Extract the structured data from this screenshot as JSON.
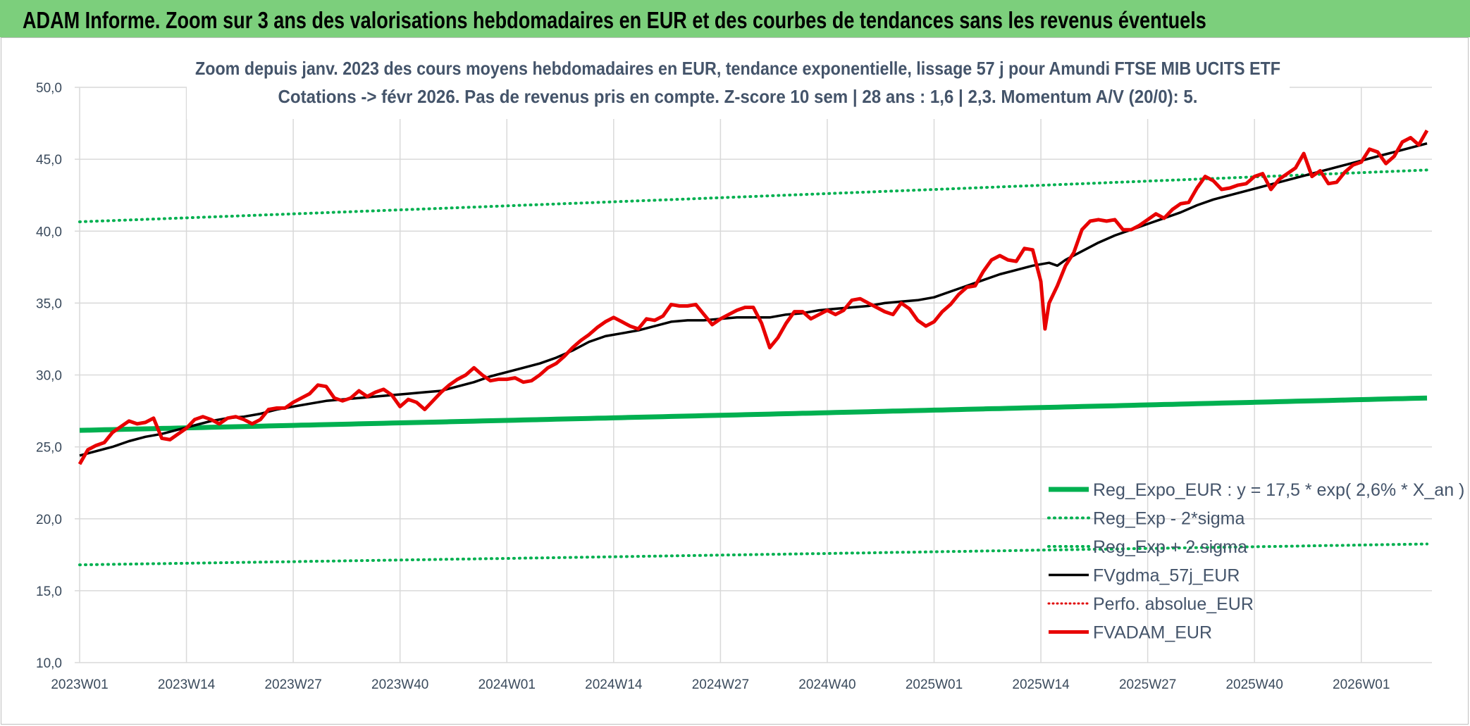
{
  "banner": {
    "title": "ADAM Informe. Zoom sur 3 ans des valorisations hebdomadaires en EUR et des courbes de tendances sans les revenus éventuels"
  },
  "colors": {
    "banner": "#7ccf7c",
    "trend": "#00b050",
    "band": "#00b050",
    "smooth": "#000000",
    "perf": "#e00000",
    "price": "#e80000",
    "grid": "#d9d9d9",
    "text": "#44546a"
  },
  "chart_data": {
    "type": "line",
    "title_line1": "Zoom depuis janv. 2023 des cours moyens hebdomadaires en EUR, tendance exponentielle, lissage 57 j pour Amundi FTSE MIB UCITS ETF",
    "title_line2": "Cotations -> févr 2026. Pas de revenus pris en compte. Z-score 10 sem | 28 ans : 1,6 | 2,3. Momentum A/V (20/0): 5.",
    "ylim": [
      10,
      50
    ],
    "yticks": [
      "50,0",
      "45,0",
      "40,0",
      "35,0",
      "30,0",
      "25,0",
      "20,0",
      "15,0",
      "10,0"
    ],
    "x_count": 165,
    "xticks": [
      {
        "i": 0,
        "label": "2023W01"
      },
      {
        "i": 13,
        "label": "2023W14"
      },
      {
        "i": 26,
        "label": "2023W27"
      },
      {
        "i": 39,
        "label": "2023W40"
      },
      {
        "i": 52,
        "label": "2024W01"
      },
      {
        "i": 65,
        "label": "2024W14"
      },
      {
        "i": 78,
        "label": "2024W27"
      },
      {
        "i": 91,
        "label": "2024W40"
      },
      {
        "i": 104,
        "label": "2025W01"
      },
      {
        "i": 117,
        "label": "2025W14"
      },
      {
        "i": 130,
        "label": "2025W27"
      },
      {
        "i": 143,
        "label": "2025W40"
      },
      {
        "i": 156,
        "label": "2026W01"
      }
    ],
    "legend": [
      "Reg_Expo_EUR : y = 17,5 * exp( 2,6% *  X_an )",
      "Reg_Exp - 2*sigma",
      "Reg_Exp + 2.sigma",
      "FVgdma_57j_EUR",
      "Perfo. absolue_EUR",
      "FVADAM_EUR"
    ],
    "series": [
      {
        "name": "Reg_Expo_EUR : y = 17,5 * exp( 2,6% *  X_an )",
        "style": "thick-solid",
        "start": 26.15,
        "end": 28.4
      },
      {
        "name": "Reg_Exp - 2*sigma",
        "style": "dotted",
        "start": 16.8,
        "end": 18.25
      },
      {
        "name": "Reg_Exp + 2.sigma",
        "style": "dotted",
        "start": 40.65,
        "end": 44.25
      },
      {
        "name": "FVgdma_57j_EUR",
        "style": "solid",
        "points": [
          [
            0,
            24.4
          ],
          [
            4,
            25.0
          ],
          [
            6,
            25.4
          ],
          [
            8,
            25.7
          ],
          [
            10,
            25.9
          ],
          [
            12,
            26.2
          ],
          [
            14,
            26.5
          ],
          [
            16,
            26.8
          ],
          [
            18,
            27.0
          ],
          [
            20,
            27.1
          ],
          [
            22,
            27.3
          ],
          [
            24,
            27.6
          ],
          [
            26,
            27.8
          ],
          [
            28,
            28.0
          ],
          [
            30,
            28.2
          ],
          [
            32,
            28.3
          ],
          [
            34,
            28.4
          ],
          [
            36,
            28.5
          ],
          [
            38,
            28.6
          ],
          [
            40,
            28.7
          ],
          [
            42,
            28.8
          ],
          [
            44,
            28.9
          ],
          [
            46,
            29.2
          ],
          [
            48,
            29.5
          ],
          [
            50,
            29.9
          ],
          [
            52,
            30.2
          ],
          [
            54,
            30.5
          ],
          [
            56,
            30.8
          ],
          [
            58,
            31.2
          ],
          [
            60,
            31.7
          ],
          [
            62,
            32.3
          ],
          [
            64,
            32.7
          ],
          [
            66,
            32.9
          ],
          [
            68,
            33.1
          ],
          [
            70,
            33.4
          ],
          [
            72,
            33.7
          ],
          [
            74,
            33.8
          ],
          [
            76,
            33.8
          ],
          [
            78,
            33.9
          ],
          [
            80,
            34.0
          ],
          [
            82,
            34.0
          ],
          [
            84,
            34.0
          ],
          [
            86,
            34.2
          ],
          [
            88,
            34.3
          ],
          [
            90,
            34.5
          ],
          [
            92,
            34.6
          ],
          [
            94,
            34.7
          ],
          [
            96,
            34.8
          ],
          [
            98,
            35.0
          ],
          [
            100,
            35.1
          ],
          [
            102,
            35.2
          ],
          [
            104,
            35.4
          ],
          [
            106,
            35.8
          ],
          [
            108,
            36.2
          ],
          [
            110,
            36.6
          ],
          [
            112,
            37.0
          ],
          [
            114,
            37.3
          ],
          [
            116,
            37.6
          ],
          [
            118,
            37.8
          ],
          [
            119,
            37.6
          ],
          [
            120,
            38.0
          ],
          [
            122,
            38.6
          ],
          [
            124,
            39.2
          ],
          [
            126,
            39.7
          ],
          [
            128,
            40.1
          ],
          [
            130,
            40.5
          ],
          [
            132,
            40.9
          ],
          [
            134,
            41.3
          ],
          [
            136,
            41.8
          ],
          [
            138,
            42.2
          ],
          [
            140,
            42.5
          ],
          [
            142,
            42.8
          ],
          [
            144,
            43.1
          ],
          [
            146,
            43.4
          ],
          [
            148,
            43.7
          ],
          [
            150,
            44.0
          ],
          [
            152,
            44.3
          ],
          [
            154,
            44.6
          ],
          [
            156,
            44.9
          ],
          [
            158,
            45.2
          ],
          [
            160,
            45.5
          ],
          [
            162,
            45.8
          ],
          [
            164,
            46.1
          ]
        ]
      },
      {
        "name": "Perfo. absolue_EUR",
        "style": "dotted-red",
        "points": []
      },
      {
        "name": "FVADAM_EUR",
        "style": "thick-solid",
        "points": [
          [
            0,
            23.8
          ],
          [
            1,
            24.8
          ],
          [
            2,
            25.1
          ],
          [
            3,
            25.3
          ],
          [
            4,
            26.0
          ],
          [
            5,
            26.4
          ],
          [
            6,
            26.8
          ],
          [
            7,
            26.6
          ],
          [
            8,
            26.7
          ],
          [
            9,
            27.0
          ],
          [
            10,
            25.6
          ],
          [
            11,
            25.5
          ],
          [
            12,
            25.9
          ],
          [
            13,
            26.3
          ],
          [
            14,
            26.9
          ],
          [
            15,
            27.1
          ],
          [
            16,
            26.9
          ],
          [
            17,
            26.6
          ],
          [
            18,
            27.0
          ],
          [
            19,
            27.1
          ],
          [
            20,
            26.9
          ],
          [
            21,
            26.6
          ],
          [
            22,
            26.9
          ],
          [
            23,
            27.6
          ],
          [
            24,
            27.7
          ],
          [
            25,
            27.7
          ],
          [
            26,
            28.1
          ],
          [
            27,
            28.4
          ],
          [
            28,
            28.7
          ],
          [
            29,
            29.3
          ],
          [
            30,
            29.2
          ],
          [
            31,
            28.4
          ],
          [
            32,
            28.2
          ],
          [
            33,
            28.4
          ],
          [
            34,
            28.9
          ],
          [
            35,
            28.5
          ],
          [
            36,
            28.8
          ],
          [
            37,
            29.0
          ],
          [
            38,
            28.6
          ],
          [
            39,
            27.8
          ],
          [
            40,
            28.3
          ],
          [
            41,
            28.1
          ],
          [
            42,
            27.6
          ],
          [
            43,
            28.2
          ],
          [
            44,
            28.8
          ],
          [
            45,
            29.3
          ],
          [
            46,
            29.7
          ],
          [
            47,
            30.0
          ],
          [
            48,
            30.5
          ],
          [
            49,
            30.0
          ],
          [
            50,
            29.6
          ],
          [
            51,
            29.7
          ],
          [
            52,
            29.7
          ],
          [
            53,
            29.8
          ],
          [
            54,
            29.5
          ],
          [
            55,
            29.6
          ],
          [
            56,
            30.0
          ],
          [
            57,
            30.5
          ],
          [
            58,
            30.8
          ],
          [
            59,
            31.3
          ],
          [
            60,
            31.9
          ],
          [
            61,
            32.4
          ],
          [
            62,
            32.8
          ],
          [
            63,
            33.3
          ],
          [
            64,
            33.7
          ],
          [
            65,
            34.0
          ],
          [
            66,
            33.7
          ],
          [
            67,
            33.4
          ],
          [
            68,
            33.2
          ],
          [
            69,
            33.9
          ],
          [
            70,
            33.8
          ],
          [
            71,
            34.1
          ],
          [
            72,
            34.9
          ],
          [
            73,
            34.8
          ],
          [
            74,
            34.8
          ],
          [
            75,
            34.9
          ],
          [
            76,
            34.2
          ],
          [
            77,
            33.5
          ],
          [
            78,
            33.9
          ],
          [
            79,
            34.2
          ],
          [
            80,
            34.5
          ],
          [
            81,
            34.7
          ],
          [
            82,
            34.7
          ],
          [
            83,
            33.6
          ],
          [
            84,
            31.9
          ],
          [
            85,
            32.6
          ],
          [
            86,
            33.6
          ],
          [
            87,
            34.4
          ],
          [
            88,
            34.4
          ],
          [
            89,
            33.9
          ],
          [
            90,
            34.2
          ],
          [
            91,
            34.5
          ],
          [
            92,
            34.2
          ],
          [
            93,
            34.5
          ],
          [
            94,
            35.2
          ],
          [
            95,
            35.3
          ],
          [
            96,
            35.0
          ],
          [
            97,
            34.7
          ],
          [
            98,
            34.4
          ],
          [
            99,
            34.2
          ],
          [
            100,
            35.0
          ],
          [
            101,
            34.6
          ],
          [
            102,
            33.8
          ],
          [
            103,
            33.4
          ],
          [
            104,
            33.7
          ],
          [
            105,
            34.4
          ],
          [
            106,
            34.9
          ],
          [
            107,
            35.6
          ],
          [
            108,
            36.1
          ],
          [
            109,
            36.2
          ],
          [
            110,
            37.2
          ],
          [
            111,
            38.0
          ],
          [
            112,
            38.3
          ],
          [
            113,
            38.0
          ],
          [
            114,
            37.9
          ],
          [
            115,
            38.8
          ],
          [
            116,
            38.7
          ],
          [
            117,
            36.5
          ],
          [
            117.5,
            33.2
          ],
          [
            118,
            35.0
          ],
          [
            119,
            36.2
          ],
          [
            120,
            37.6
          ],
          [
            121,
            38.5
          ],
          [
            122,
            40.1
          ],
          [
            123,
            40.7
          ],
          [
            124,
            40.8
          ],
          [
            125,
            40.7
          ],
          [
            126,
            40.8
          ],
          [
            127,
            40.1
          ],
          [
            128,
            40.1
          ],
          [
            129,
            40.4
          ],
          [
            130,
            40.8
          ],
          [
            131,
            41.2
          ],
          [
            132,
            40.9
          ],
          [
            133,
            41.5
          ],
          [
            134,
            41.9
          ],
          [
            135,
            42.0
          ],
          [
            136,
            43.0
          ],
          [
            137,
            43.8
          ],
          [
            138,
            43.5
          ],
          [
            139,
            42.9
          ],
          [
            140,
            43.0
          ],
          [
            141,
            43.2
          ],
          [
            142,
            43.3
          ],
          [
            143,
            43.8
          ],
          [
            144,
            44.0
          ],
          [
            145,
            42.9
          ],
          [
            146,
            43.6
          ],
          [
            147,
            44.0
          ],
          [
            148,
            44.4
          ],
          [
            149,
            45.4
          ],
          [
            150,
            43.8
          ],
          [
            151,
            44.2
          ],
          [
            152,
            43.3
          ],
          [
            153,
            43.4
          ],
          [
            154,
            44.1
          ],
          [
            155,
            44.6
          ],
          [
            156,
            44.8
          ],
          [
            157,
            45.7
          ],
          [
            158,
            45.5
          ],
          [
            159,
            44.7
          ],
          [
            160,
            45.2
          ],
          [
            161,
            46.2
          ],
          [
            162,
            46.5
          ],
          [
            163,
            46.0
          ],
          [
            164,
            47.0
          ]
        ]
      }
    ]
  }
}
